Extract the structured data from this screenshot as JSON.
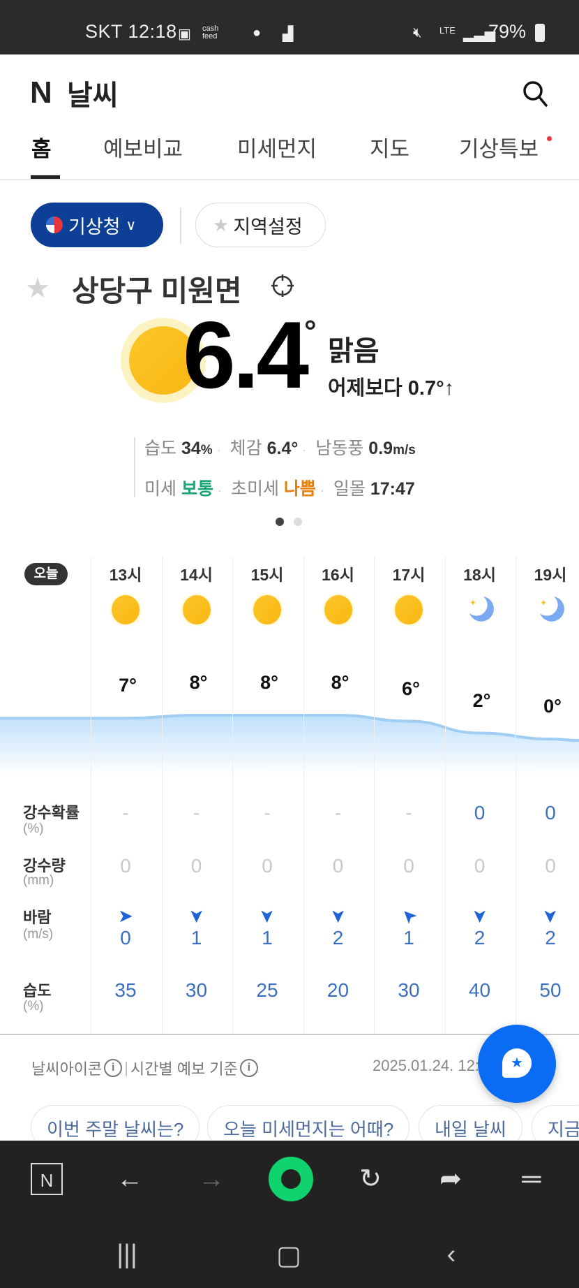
{
  "status_bar": {
    "carrier_time": "SKT 12:18",
    "network": "LTE",
    "battery": "79%",
    "icons": [
      "gallery-icon",
      "cashfeed-icon",
      "app-icon",
      "app-icon-2",
      "mute-icon",
      "lte-icon",
      "signal-icon",
      "battery-icon"
    ]
  },
  "header": {
    "logo": "N",
    "title": "날씨",
    "search_icon": "search-icon"
  },
  "tabs": [
    {
      "label": "홈",
      "active": true
    },
    {
      "label": "예보비교"
    },
    {
      "label": "미세먼지"
    },
    {
      "label": "지도"
    },
    {
      "label": "기상특보",
      "badge": "red-dot"
    }
  ],
  "source": {
    "label": "기상청",
    "region_button": "지역설정"
  },
  "location": {
    "name": "상당구 미원면"
  },
  "current": {
    "temp": "6.4",
    "deg": "°",
    "condition": "맑음",
    "vs_yesterday": "어제보다 0.7°↑",
    "humidity_label": "습도",
    "humidity": "34",
    "humidity_unit": "%",
    "feels_label": "체감",
    "feels": "6.4°",
    "wind_label": "남동풍",
    "wind": "0.9",
    "wind_unit": "m/s",
    "pm10_label": "미세",
    "pm10": "보통",
    "pm25_label": "초미세",
    "pm25": "나쁨",
    "sunset_label": "일몰",
    "sunset": "17:47"
  },
  "colors": {
    "accent": "#0d3f96",
    "good": "#16a673",
    "bad": "#e57f0a",
    "value": "#3a6fbf",
    "fab": "#0a6cf5"
  },
  "pager": {
    "pages": 2,
    "active": 1
  },
  "hourly": {
    "day_badge": "오늘",
    "rows": {
      "precip_prob": {
        "label": "강수확률",
        "unit": "(%)"
      },
      "precip": {
        "label": "강수량",
        "unit": "(mm)"
      },
      "wind": {
        "label": "바람",
        "unit": "(m/s)"
      },
      "humidity": {
        "label": "습도",
        "unit": "(%)"
      }
    },
    "hours": [
      {
        "hour": "13시",
        "icon": "sun",
        "temp": 7,
        "precip_prob": "-",
        "precip": "0",
        "wind_dir": "arrow-right",
        "wind": "0",
        "humidity": "35"
      },
      {
        "hour": "14시",
        "icon": "sun",
        "temp": 8,
        "precip_prob": "-",
        "precip": "0",
        "wind_dir": "arrow-down",
        "wind": "1",
        "humidity": "30"
      },
      {
        "hour": "15시",
        "icon": "sun",
        "temp": 8,
        "precip_prob": "-",
        "precip": "0",
        "wind_dir": "arrow-down",
        "wind": "1",
        "humidity": "25"
      },
      {
        "hour": "16시",
        "icon": "sun",
        "temp": 8,
        "precip_prob": "-",
        "precip": "0",
        "wind_dir": "arrow-down",
        "wind": "2",
        "humidity": "20"
      },
      {
        "hour": "17시",
        "icon": "sun",
        "temp": 6,
        "precip_prob": "-",
        "precip": "0",
        "wind_dir": "arrow-up-left",
        "wind": "1",
        "humidity": "30"
      },
      {
        "hour": "18시",
        "icon": "moon",
        "temp": 2,
        "precip_prob": "0",
        "precip": "0",
        "wind_dir": "arrow-down",
        "wind": "2",
        "humidity": "40"
      },
      {
        "hour": "19시",
        "icon": "moon",
        "temp": 0,
        "precip_prob": "0",
        "precip": "0",
        "wind_dir": "arrow-down",
        "wind": "2",
        "humidity": "50"
      }
    ]
  },
  "footer": {
    "icon_info": "날씨아이콘",
    "sep": "|",
    "forecast_basis": "시간별 예보 기준",
    "date": "2025.01.24. 12:1"
  },
  "suggestions": [
    "이번 주말 날씨는?",
    "오늘 미세먼지는 어때?",
    "내일 날씨",
    "지금"
  ],
  "browser_bar": {
    "icons": [
      "naver-home-icon",
      "back-icon",
      "forward-icon",
      "green-dot-icon",
      "refresh-icon",
      "share-icon",
      "menu-icon"
    ]
  },
  "nav_bar": {
    "icons": [
      "recents-icon",
      "home-icon",
      "back-icon"
    ]
  }
}
